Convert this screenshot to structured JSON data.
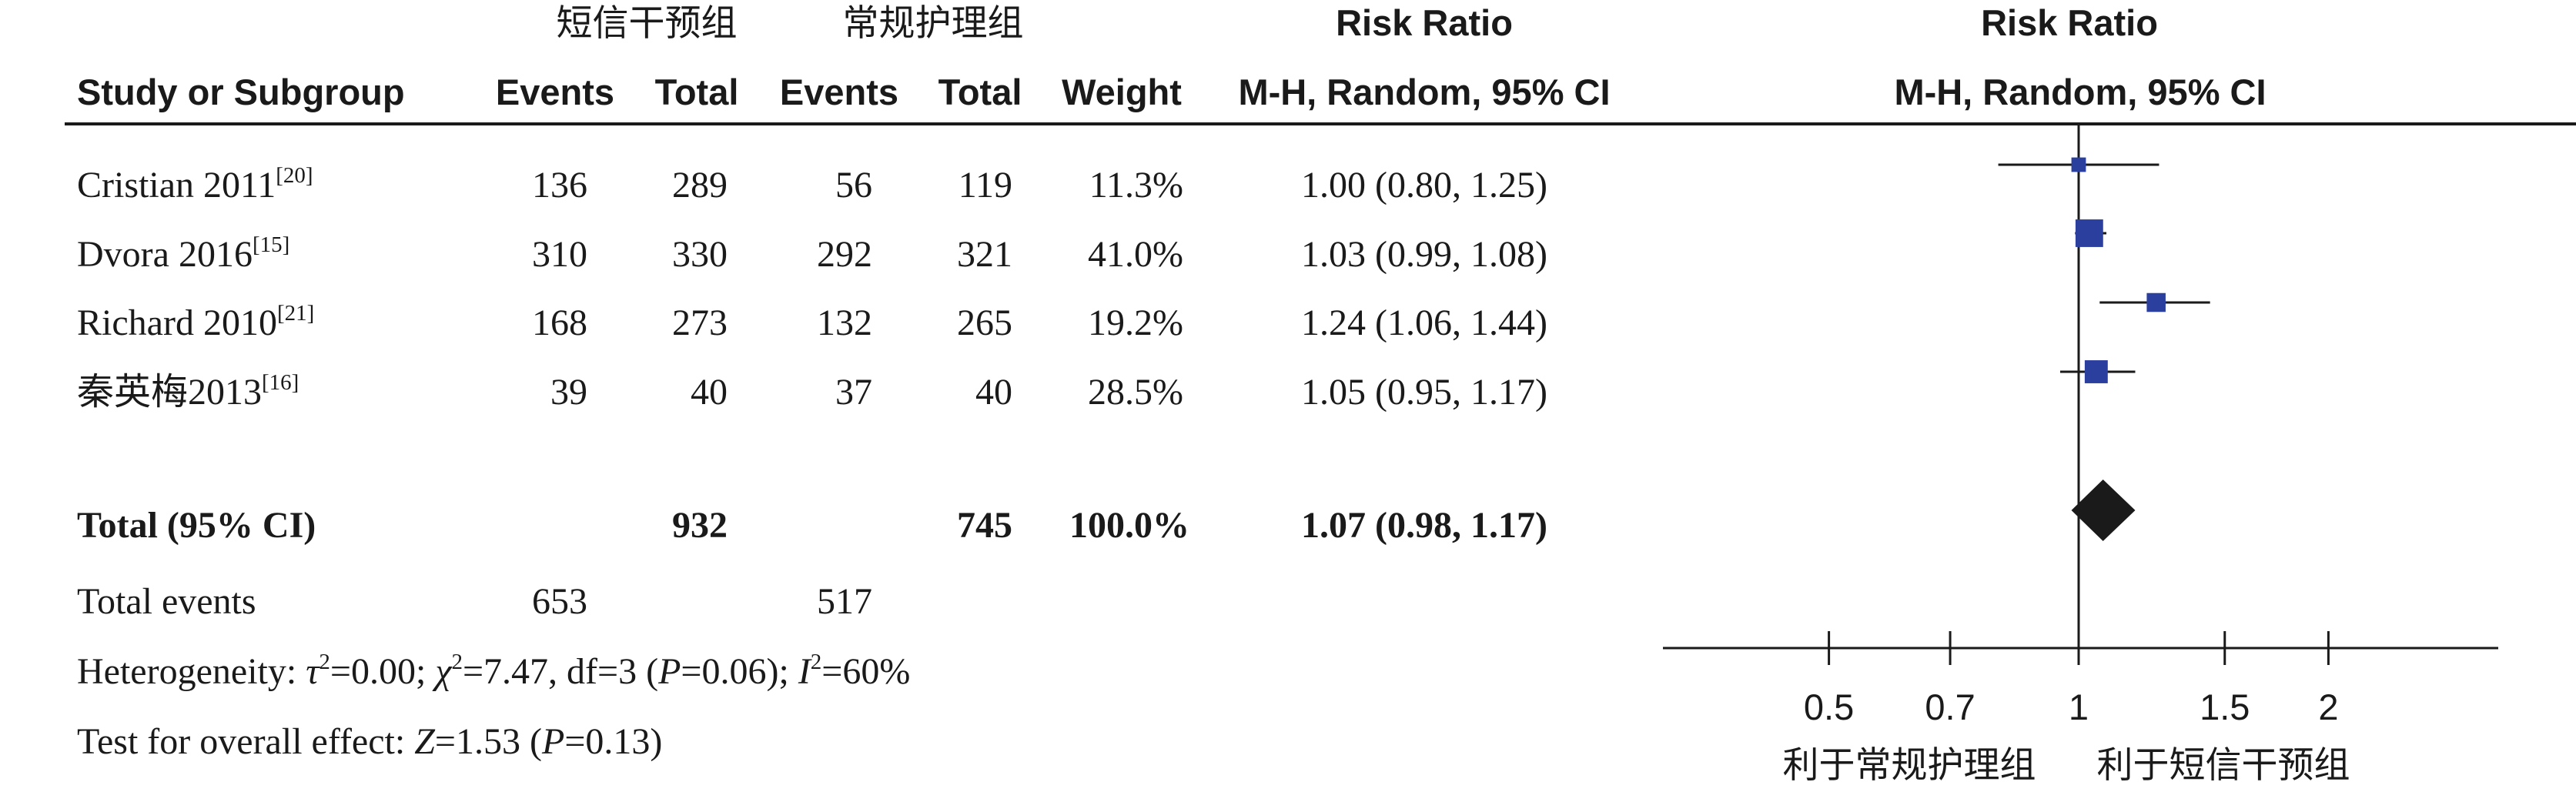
{
  "chart_data": {
    "type": "forest",
    "scale": "log",
    "xlim": [
      0.4,
      2.7
    ],
    "null_value": 1,
    "ticks": [
      {
        "value": 0.5,
        "label": "0.5"
      },
      {
        "value": 0.7,
        "label": "0.7"
      },
      {
        "value": 1,
        "label": "1"
      },
      {
        "value": 1.5,
        "label": "1.5"
      },
      {
        "value": 2,
        "label": "2"
      }
    ],
    "groups": {
      "experimental": "短信干预组",
      "control": "常规护理组"
    },
    "headers": {
      "study": "Study or Subgroup",
      "events_e": "Events",
      "total_e": "Total",
      "events_c": "Events",
      "total_c": "Total",
      "weight": "Weight",
      "rr_title": "Risk Ratio",
      "rr_method": "M-H, Random, 95% CI",
      "plot_title": "Risk Ratio",
      "plot_method": "M-H, Random, 95% CI"
    },
    "studies": [
      {
        "name": "Cristian 2011",
        "ref": "[20]",
        "events_e": "136",
        "total_e": "289",
        "events_c": "56",
        "total_c": "119",
        "weight": "11.3%",
        "weight_value": 11.3,
        "rr_text": "1.00 (0.80, 1.25)",
        "rr": 1.0,
        "lower": 0.8,
        "upper": 1.25
      },
      {
        "name": "Dvora 2016",
        "ref": "[15]",
        "events_e": "310",
        "total_e": "330",
        "events_c": "292",
        "total_c": "321",
        "weight": "41.0%",
        "weight_value": 41.0,
        "rr_text": "1.03 (0.99, 1.08)",
        "rr": 1.03,
        "lower": 0.99,
        "upper": 1.08
      },
      {
        "name": "Richard 2010",
        "ref": "[21]",
        "events_e": "168",
        "total_e": "273",
        "events_c": "132",
        "total_c": "265",
        "weight": "19.2%",
        "weight_value": 19.2,
        "rr_text": "1.24 (1.06, 1.44)",
        "rr": 1.24,
        "lower": 1.06,
        "upper": 1.44
      },
      {
        "name": "秦英梅2013",
        "ref": "[16]",
        "events_e": "39",
        "total_e": "40",
        "events_c": "37",
        "total_c": "40",
        "weight": "28.5%",
        "weight_value": 28.5,
        "rr_text": "1.05 (0.95, 1.17)",
        "rr": 1.05,
        "lower": 0.95,
        "upper": 1.17
      }
    ],
    "total": {
      "label": "Total (95% CI)",
      "total_e": "932",
      "total_c": "745",
      "weight": "100.0%",
      "rr_text": "1.07 (0.98, 1.17)",
      "rr": 1.07,
      "lower": 0.98,
      "upper": 1.17
    },
    "total_events": {
      "label": "Total events",
      "events_e": "653",
      "events_c": "517"
    },
    "heterogeneity": {
      "prefix": "Heterogeneity: ",
      "tau2": "0.00",
      "chi2": "7.47",
      "df": "3",
      "p": "0.06",
      "i2": "60%"
    },
    "overall_effect": {
      "prefix": "Test for overall effect: ",
      "z": "1.53",
      "p": "0.13"
    },
    "favours": {
      "left": "利于常规护理组",
      "right": "利于短信干预组"
    },
    "colors": {
      "marker": "#2b3f9e",
      "diamond": "#1a1a1a",
      "line": "#1a1a1a"
    }
  }
}
